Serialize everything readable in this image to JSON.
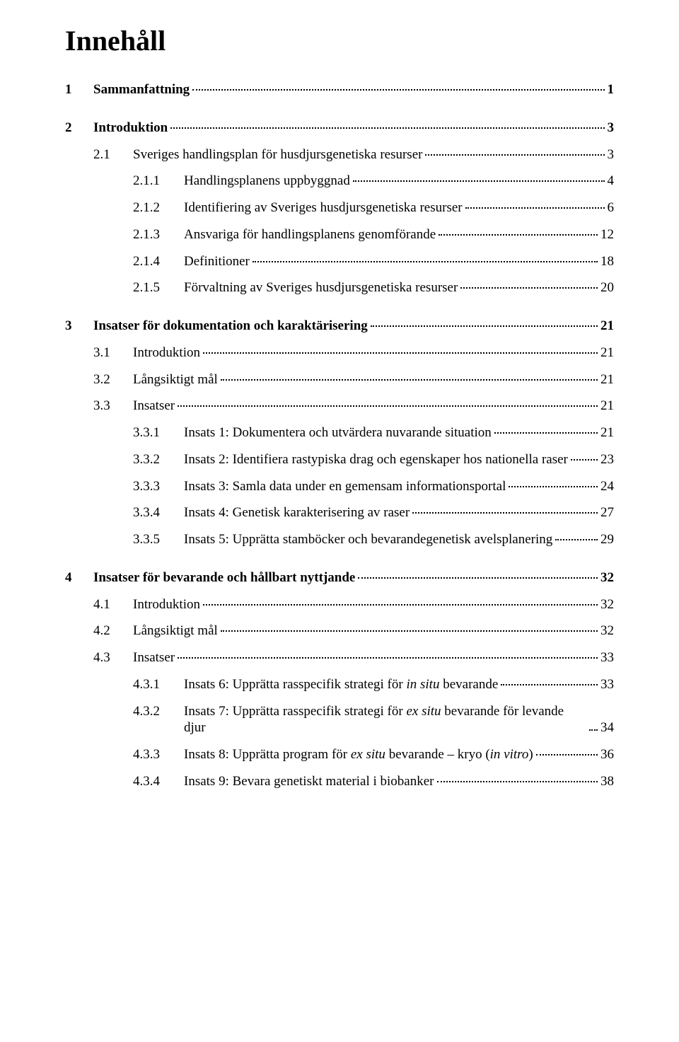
{
  "title": "Innehåll",
  "entries": [
    {
      "level": 1,
      "bold": true,
      "num": "1",
      "text": "Sammanfattning",
      "page": "1"
    },
    {
      "level": 1,
      "bold": true,
      "num": "2",
      "text": "Introduktion",
      "page": "3"
    },
    {
      "level": 2,
      "num": "2.1",
      "text": "Sveriges handlingsplan för husdjursgenetiska resurser",
      "page": "3"
    },
    {
      "level": 3,
      "num": "2.1.1",
      "text": "Handlingsplanens uppbyggnad",
      "page": "4"
    },
    {
      "level": 3,
      "num": "2.1.2",
      "text": "Identifiering av Sveriges husdjursgenetiska resurser",
      "page": "6"
    },
    {
      "level": 3,
      "num": "2.1.3",
      "text": "Ansvariga för handlingsplanens genomförande",
      "page": "12"
    },
    {
      "level": 3,
      "num": "2.1.4",
      "text": "Definitioner",
      "page": "18"
    },
    {
      "level": 3,
      "num": "2.1.5",
      "text": "Förvaltning av Sveriges husdjursgenetiska resurser",
      "page": "20"
    },
    {
      "level": 1,
      "bold": true,
      "num": "3",
      "text": "Insatser för dokumentation och karaktärisering",
      "page": "21"
    },
    {
      "level": 2,
      "num": "3.1",
      "text": "Introduktion",
      "page": "21"
    },
    {
      "level": 2,
      "num": "3.2",
      "text": "Långsiktigt mål",
      "page": "21"
    },
    {
      "level": 2,
      "num": "3.3",
      "text": "Insatser",
      "page": "21"
    },
    {
      "level": 3,
      "num": "3.3.1",
      "text": "Insats 1: Dokumentera och utvärdera nuvarande situation",
      "page": "21"
    },
    {
      "level": 3,
      "num": "3.3.2",
      "text": "Insats 2: Identifiera rastypiska drag och egenskaper hos nationella raser",
      "page": "23"
    },
    {
      "level": 3,
      "num": "3.3.3",
      "text": "Insats 3: Samla data under en gemensam informationsportal",
      "page": "24"
    },
    {
      "level": 3,
      "num": "3.3.4",
      "text": "Insats 4: Genetisk karakterisering av raser",
      "page": "27"
    },
    {
      "level": 3,
      "num": "3.3.5",
      "text": "Insats 5: Upprätta stamböcker och bevarandegenetisk avelsplanering",
      "page": "29"
    },
    {
      "level": 1,
      "bold": true,
      "num": "4",
      "text": "Insatser för bevarande och hållbart nyttjande",
      "page": "32"
    },
    {
      "level": 2,
      "num": "4.1",
      "text": "Introduktion",
      "page": "32"
    },
    {
      "level": 2,
      "num": "4.2",
      "text": "Långsiktigt mål",
      "page": "32"
    },
    {
      "level": 2,
      "num": "4.3",
      "text": "Insatser",
      "page": "33"
    },
    {
      "level": 3,
      "num": "4.3.1",
      "html": "Insats 6: Upprätta rasspecifik strategi för <span class=\"italic-inline\">in situ</span> bevarande",
      "page": "33"
    },
    {
      "level": 3,
      "num": "4.3.2",
      "html": "Insats 7: Upprätta rasspecifik strategi för <span class=\"italic-inline\">ex situ</span> bevarande för levande djur",
      "page": "34",
      "twoline": true
    },
    {
      "level": 3,
      "num": "4.3.3",
      "html": "Insats 8: Upprätta program för <span class=\"italic-inline\">ex situ</span> bevarande – kryo (<span class=\"italic-inline\">in vitro</span>)",
      "page": "36"
    },
    {
      "level": 3,
      "num": "4.3.4",
      "text": "Insats 9: Bevara genetiskt material i biobanker",
      "page": "38"
    }
  ],
  "colors": {
    "text": "#000000",
    "background": "#ffffff"
  },
  "fontsizes": {
    "title": 40,
    "body": 19
  }
}
